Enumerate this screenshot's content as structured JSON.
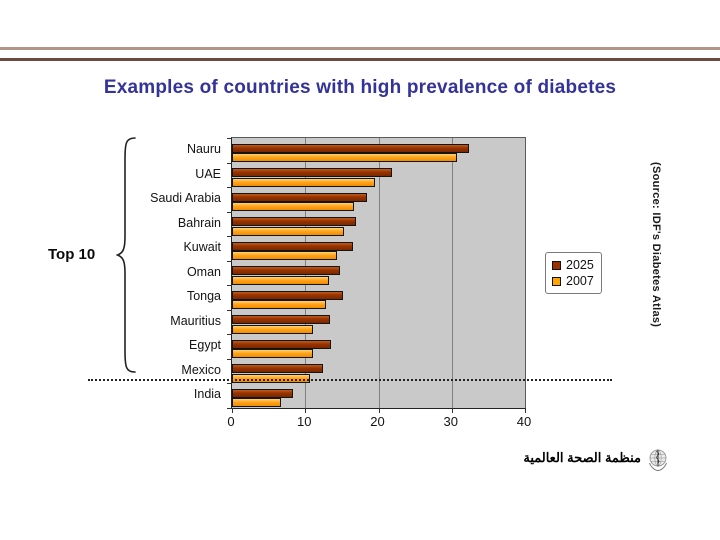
{
  "slide": {
    "title": "Examples of countries with high prevalence of diabetes",
    "group_label": "Top 10",
    "source_note": "(Source: IDF's Diabetes Atlas)",
    "footer": {
      "org_name_arabic": "منظمة الصحة العالمية",
      "logo_icon": "who-emblem-icon"
    }
  },
  "chart_data": {
    "type": "bar",
    "orientation": "horizontal",
    "categories": [
      "Nauru",
      "UAE",
      "Saudi Arabia",
      "Bahrain",
      "Kuwait",
      "Oman",
      "Tonga",
      "Mauritius",
      "Egypt",
      "Mexico",
      "India"
    ],
    "series": [
      {
        "name": "2025",
        "color": "#993300",
        "values": [
          32.3,
          21.8,
          18.4,
          16.9,
          16.5,
          14.8,
          15.2,
          13.4,
          13.5,
          12.4,
          8.3
        ]
      },
      {
        "name": "2007",
        "color": "#FFA500",
        "values": [
          30.7,
          19.5,
          16.6,
          15.3,
          14.4,
          13.2,
          12.8,
          11.1,
          11.0,
          10.6,
          6.7
        ]
      }
    ],
    "xlim": [
      0,
      40
    ],
    "xticks": [
      0,
      10,
      20,
      30,
      40
    ],
    "grid": true,
    "legend_position": "right-of-plot",
    "plot_background": "#C9C9C9",
    "annotations": {
      "group_bracket_label": "Top 10",
      "group_members": [
        "Nauru",
        "UAE",
        "Saudi Arabia",
        "Bahrain",
        "Kuwait",
        "Oman",
        "Tonga",
        "Mauritius",
        "Egypt",
        "Mexico"
      ],
      "separator": "dotted line between Mexico and India"
    }
  },
  "colors": {
    "title_text": "#333399",
    "header_rule_light": "#B29488",
    "header_rule_dark": "#6D4A3E",
    "series_2025": "#993300",
    "series_2007": "#FFA500",
    "plot_background": "#C9C9C9",
    "gridline": "#7F7F7F"
  }
}
